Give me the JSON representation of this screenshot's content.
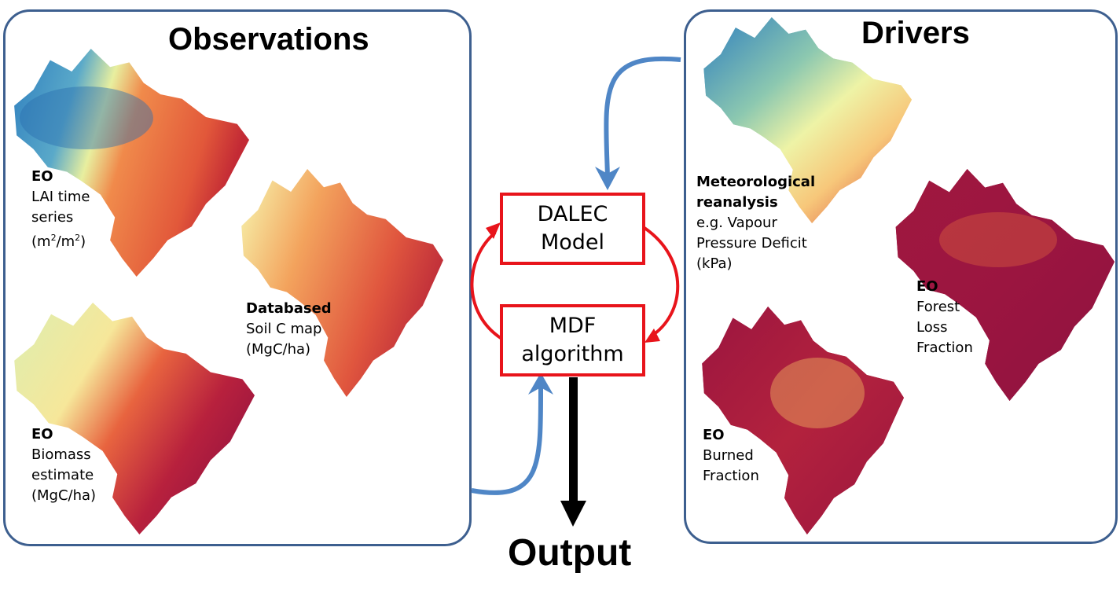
{
  "observations": {
    "title": "Observations",
    "lai": {
      "tag": "EO",
      "line1": "LAI time",
      "line2": "series",
      "unit_pre": "(m",
      "unit_sup1": "2",
      "unit_mid": "/m",
      "unit_sup2": "2",
      "unit_post": ")"
    },
    "soil": {
      "tag": "Databased",
      "line1": "Soil C map",
      "line2": "(MgC/ha)"
    },
    "biomass": {
      "tag": "EO",
      "line1": "Biomass",
      "line2": "estimate",
      "line3": "(MgC/ha)"
    }
  },
  "drivers": {
    "title": "Drivers",
    "meteo": {
      "tag1": "Meteorological",
      "tag2": "reanalysis",
      "line1": "e.g. Vapour",
      "line2": "Pressure Deficit",
      "line3": "(kPa)"
    },
    "forest_loss": {
      "tag": "EO",
      "line1": "Forest",
      "line2": "Loss",
      "line3": "Fraction"
    },
    "burned": {
      "tag": "EO",
      "line1": "Burned",
      "line2": "Fraction"
    }
  },
  "center": {
    "dalec": {
      "line1": "DALEC",
      "line2": "Model"
    },
    "mdf": {
      "line1": "MDF",
      "line2": "algorithm"
    },
    "output": "Output"
  },
  "colors": {
    "panel_border": "#3d5f8f",
    "flow_arrow": "#4f86c6",
    "loop_arrow": "#e8141b",
    "output_arrow": "#000000"
  },
  "icons": {
    "maps": [
      "brazil-lai-map",
      "brazil-soil-carbon-map",
      "brazil-biomass-map",
      "brazil-vpd-map",
      "brazil-forest-loss-map",
      "brazil-burned-map"
    ]
  }
}
